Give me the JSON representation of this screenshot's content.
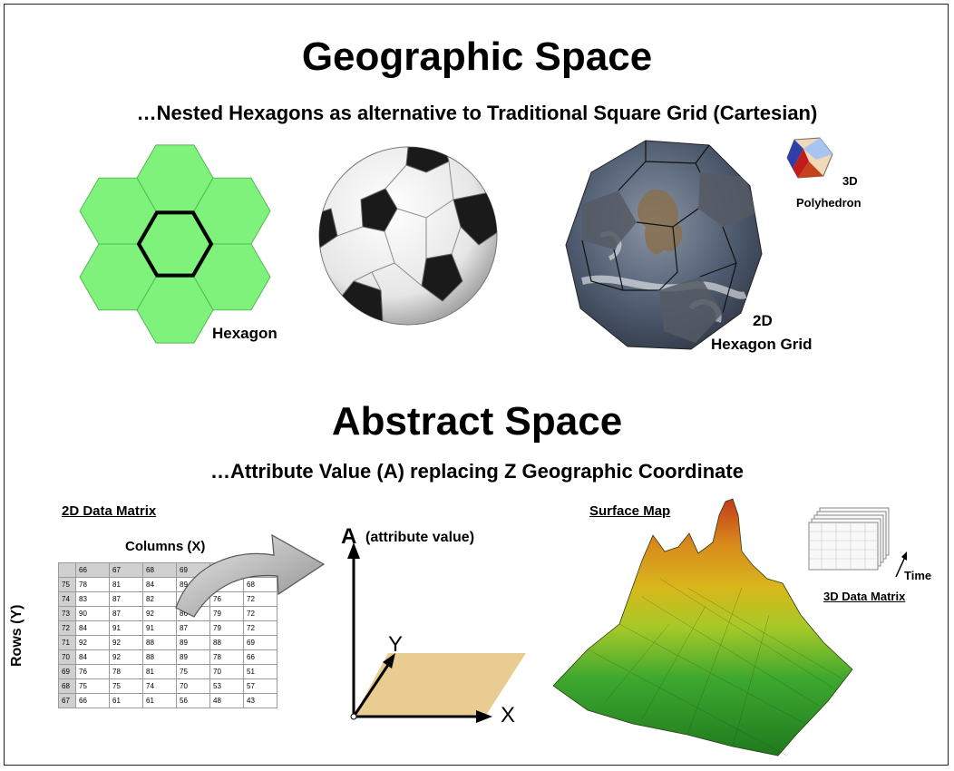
{
  "geo": {
    "title": "Geographic Space",
    "subtitle": "…Nested Hexagons as alternative to Traditional Square Grid (Cartesian)",
    "hexagon_label": "Hexagon",
    "grid_label_1": "2D",
    "grid_label_2": "Hexagon Grid",
    "poly_label_1": "3D",
    "poly_label_2": "Polyhedron",
    "colors": {
      "hex_fill": "#7ef27a",
      "hex_stroke": "#55b955"
    }
  },
  "abstract": {
    "title": "Abstract Space",
    "subtitle": "…Attribute Value (A) replacing Z Geographic Coordinate",
    "matrix_title": "2D Data Matrix",
    "columns_label": "Columns (X)",
    "rows_label": "Rows (Y)",
    "axis_a": "A",
    "axis_a_note": "(attribute value)",
    "axis_y": "Y",
    "axis_x": "X",
    "surface_title": "Surface Map",
    "time_label": "Time",
    "matrix3d_label": "3D Data Matrix"
  },
  "matrix": {
    "header": [
      "",
      "66",
      "67",
      "68",
      "69",
      "",
      ""
    ],
    "rows": [
      [
        "75",
        "78",
        "81",
        "84",
        "89",
        "73",
        "68"
      ],
      [
        "74",
        "83",
        "87",
        "82",
        "",
        "76",
        "72"
      ],
      [
        "73",
        "90",
        "87",
        "92",
        "86",
        "79",
        "72"
      ],
      [
        "72",
        "84",
        "91",
        "91",
        "87",
        "79",
        "72"
      ],
      [
        "71",
        "92",
        "92",
        "88",
        "89",
        "88",
        "69"
      ],
      [
        "70",
        "84",
        "92",
        "88",
        "89",
        "78",
        "66"
      ],
      [
        "69",
        "76",
        "78",
        "81",
        "75",
        "70",
        "51"
      ],
      [
        "68",
        "75",
        "75",
        "74",
        "70",
        "53",
        "57"
      ],
      [
        "67",
        "66",
        "61",
        "61",
        "56",
        "48",
        "43"
      ]
    ]
  }
}
